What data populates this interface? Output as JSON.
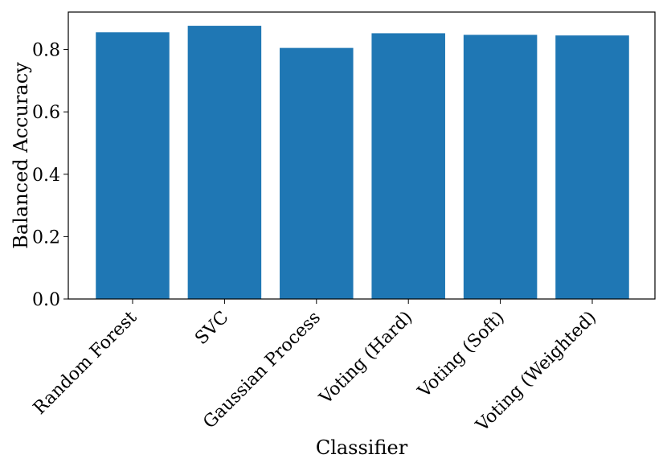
{
  "chart_data": {
    "type": "bar",
    "title": "",
    "xlabel": "Classifier",
    "ylabel": "Balanced Accuracy",
    "categories": [
      "Random Forest",
      "SVC",
      "Gaussian Process",
      "Voting (Hard)",
      "Voting (Soft)",
      "Voting (Weighted)"
    ],
    "values": [
      0.855,
      0.876,
      0.805,
      0.852,
      0.847,
      0.845
    ],
    "ylim": [
      0,
      0.92
    ],
    "yticks": [
      "0.0",
      "0.2",
      "0.4",
      "0.6",
      "0.8"
    ],
    "grid": false,
    "legend": "none",
    "bar_color": "#1f77b4"
  }
}
